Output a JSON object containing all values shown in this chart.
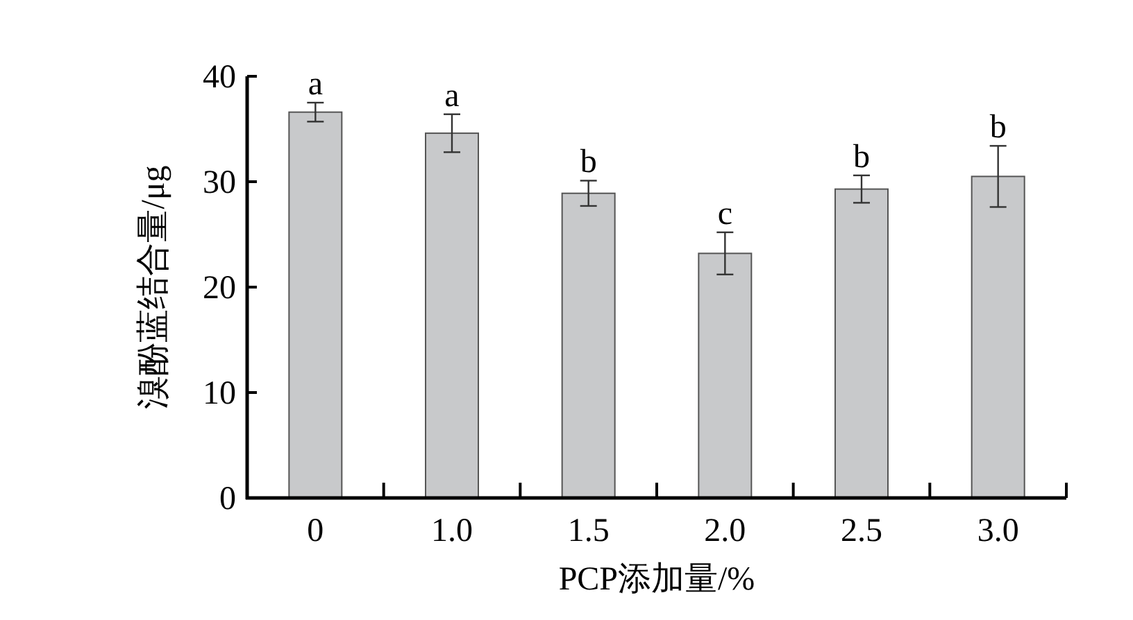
{
  "chart_data": {
    "type": "bar",
    "xlabel": "PCP添加量/%",
    "ylabel": "溴酚蓝结合量/μg",
    "categories": [
      "0",
      "1.0",
      "1.5",
      "2.0",
      "2.5",
      "3.0"
    ],
    "values": [
      36.6,
      34.6,
      28.9,
      23.2,
      29.3,
      30.5
    ],
    "errors": [
      0.9,
      1.8,
      1.2,
      2.0,
      1.3,
      2.9
    ],
    "color": "#c8c9cb",
    "ylim": [
      0,
      40
    ],
    "yticks": [
      0,
      10,
      20,
      30,
      40
    ],
    "annotations": [
      {
        "text": "a",
        "x": "0",
        "y": 37.5
      },
      {
        "text": "a",
        "x": "1.0",
        "y": 36.4
      },
      {
        "text": "b",
        "x": "1.5",
        "y": 30.1
      },
      {
        "text": "c",
        "x": "2.0",
        "y": 25.2
      },
      {
        "text": "b",
        "x": "2.5",
        "y": 30.6
      },
      {
        "text": "b",
        "x": "3.0",
        "y": 33.4
      }
    ]
  }
}
